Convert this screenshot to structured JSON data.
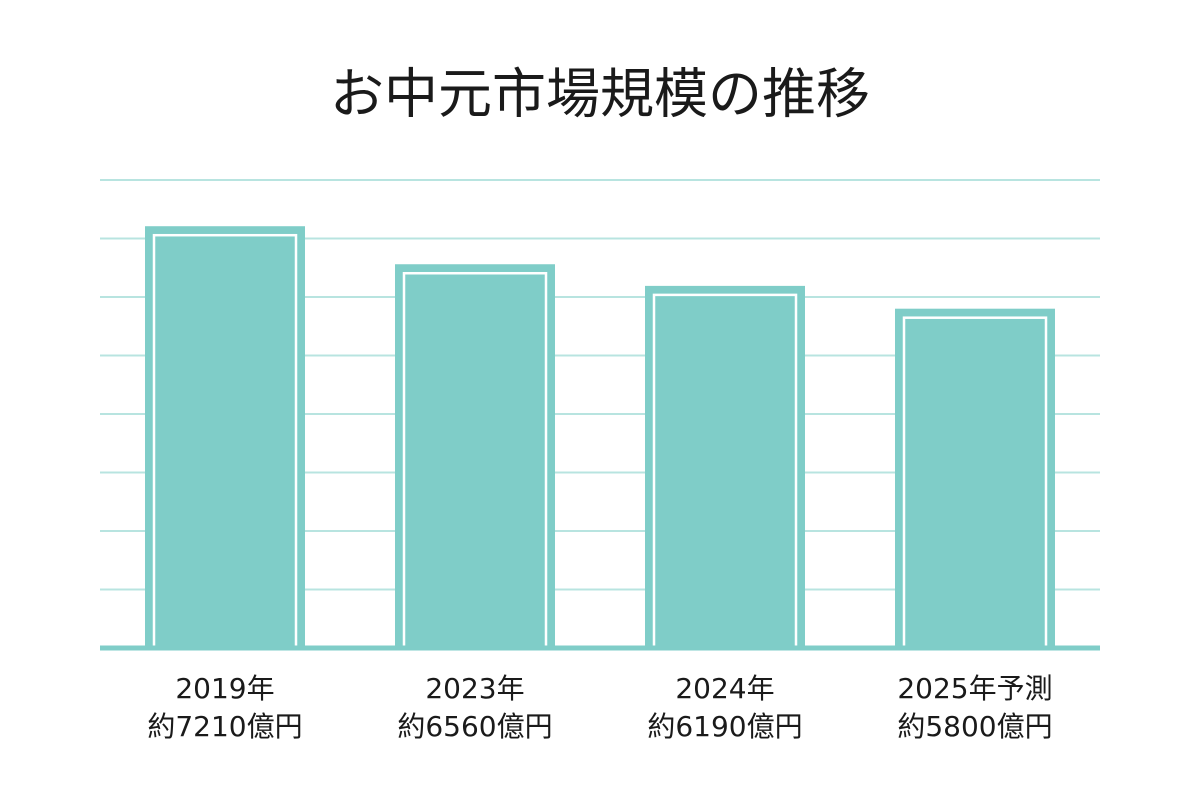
{
  "chart_data": {
    "type": "bar",
    "title": "お中元市場規模の推移",
    "categories": [
      "2019年",
      "2023年",
      "2024年",
      "2025年予測"
    ],
    "values": [
      7210,
      6560,
      6190,
      5800
    ],
    "value_labels": [
      "約7210億円",
      "約6560億円",
      "約6190億円",
      "約5800億円"
    ],
    "color": "#7fcdc8",
    "ylim": [
      0,
      8000
    ],
    "yticks": [
      0,
      1000,
      2000,
      3000,
      4000,
      5000,
      6000,
      7000,
      8000
    ],
    "grid": true
  }
}
